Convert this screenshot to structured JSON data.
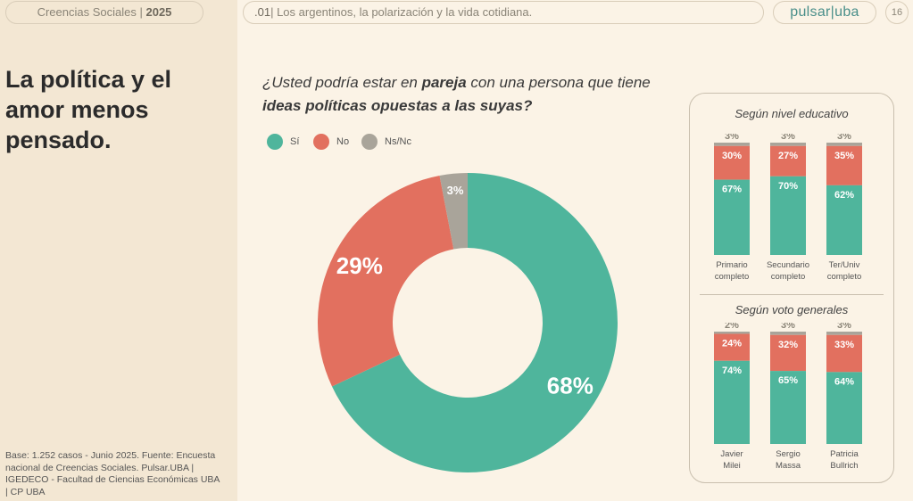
{
  "header": {
    "report_tag": "Creencias Sociales",
    "report_year": "2025",
    "section_number": ".01",
    "section_title": "Los argentinos, la polarización y la vida cotidiana.",
    "logo_text": "pulsar|uba",
    "page_number": "16"
  },
  "left": {
    "title": "La política y el amor menos pensado.",
    "footnote": "Base: 1.252 casos - Junio 2025. Fuente: Encuesta nacional de Creencias Sociales. Pulsar.UBA | IGEDECO - Facultad de Ciencias Económicas UBA | CP UBA"
  },
  "question": {
    "part1": "¿Usted podría estar en ",
    "bold1": "pareja",
    "part2": " con una persona que tiene ",
    "bold2": "ideas políticas opuestas a las suyas?"
  },
  "colors": {
    "si": "#4fb59c",
    "no": "#e2705f",
    "nsnc": "#a9a49a"
  },
  "chart_data": [
    {
      "type": "pie",
      "subtype": "donut",
      "categories": [
        "Sí",
        "No",
        "Ns/Nc"
      ],
      "values": [
        68,
        29,
        3
      ],
      "labels": [
        "68%",
        "29%",
        "3%"
      ],
      "legend": [
        "Sí",
        "No",
        "Ns/Nc"
      ],
      "legend_position": "top-left"
    },
    {
      "type": "bar",
      "stacked": true,
      "title": "Según nivel educativo",
      "categories": [
        "Primario completo",
        "Secundario completo",
        "Ter/Univ completo"
      ],
      "category_lines": [
        [
          "Primario",
          "completo"
        ],
        [
          "Secundario",
          "completo"
        ],
        [
          "Ter/Univ",
          "completo"
        ]
      ],
      "series": [
        {
          "name": "Sí",
          "values": [
            67,
            70,
            62
          ]
        },
        {
          "name": "No",
          "values": [
            30,
            27,
            35
          ]
        },
        {
          "name": "Ns/Nc",
          "values": [
            3,
            3,
            3
          ]
        }
      ]
    },
    {
      "type": "bar",
      "stacked": true,
      "title": "Según voto generales",
      "categories": [
        "Javier Milei",
        "Sergio Massa",
        "Patricia Bullrich"
      ],
      "category_lines": [
        [
          "Javier",
          "Milei"
        ],
        [
          "Sergio",
          "Massa"
        ],
        [
          "Patricia",
          "Bullrich"
        ]
      ],
      "series": [
        {
          "name": "Sí",
          "values": [
            74,
            65,
            64
          ]
        },
        {
          "name": "No",
          "values": [
            24,
            32,
            33
          ]
        },
        {
          "name": "Ns/Nc",
          "values": [
            2,
            3,
            3
          ]
        }
      ]
    }
  ]
}
